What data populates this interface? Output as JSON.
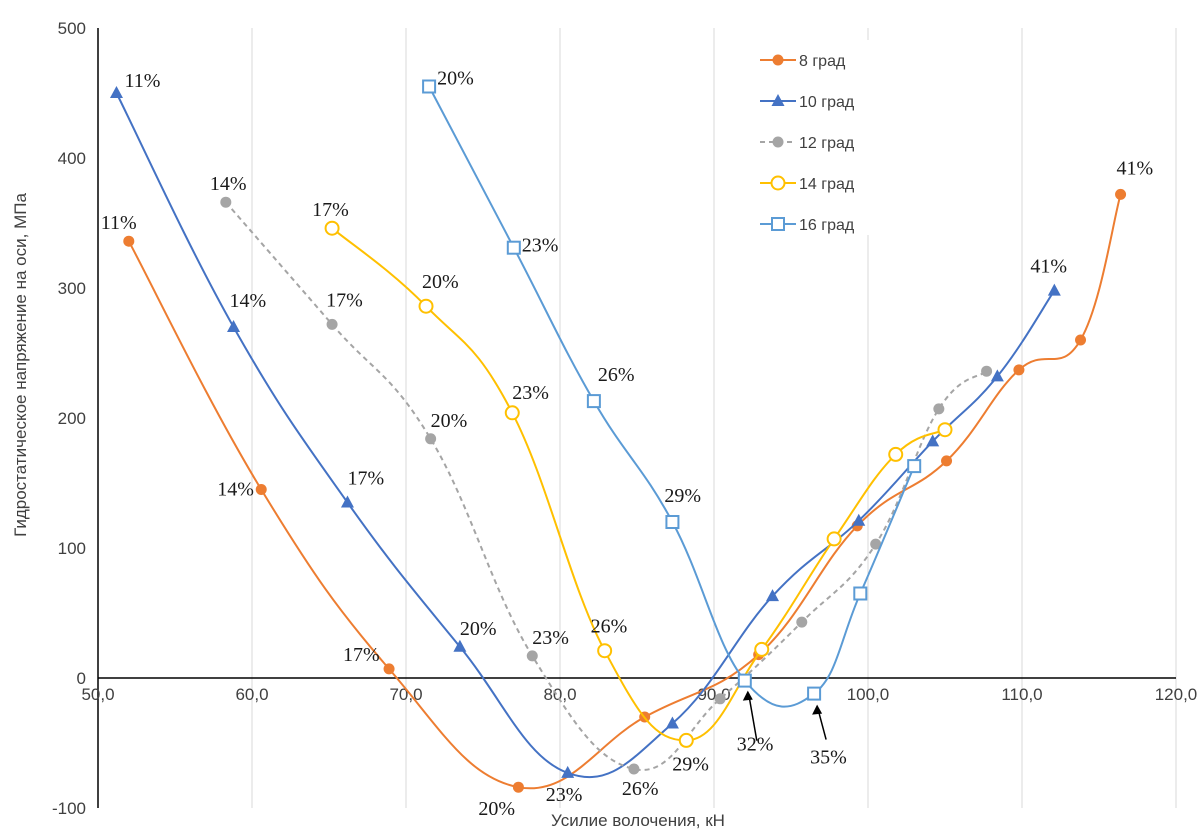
{
  "chart_data": {
    "type": "line",
    "title": "",
    "xlabel": "Усилие волочения, кН",
    "ylabel": "Гидростатическое напряжение на оси, МПа",
    "xlim": [
      50,
      120
    ],
    "ylim": [
      -100,
      500
    ],
    "x_ticks": [
      "50,0",
      "60,0",
      "70,0",
      "80,0",
      "90,0",
      "100,0",
      "110,0",
      "120,0"
    ],
    "y_ticks": [
      "-100",
      "0",
      "100",
      "200",
      "300",
      "400",
      "500"
    ],
    "grid": "vertical",
    "legend_position": "top-right",
    "series": [
      {
        "name": "8 град",
        "color": "#ED7D31",
        "marker": "filled-circle",
        "dash": "solid",
        "points": [
          {
            "x": 52.0,
            "y": 336,
            "label": "11%"
          },
          {
            "x": 60.6,
            "y": 145,
            "label": "14%"
          },
          {
            "x": 68.9,
            "y": 7,
            "label": "17%"
          },
          {
            "x": 77.3,
            "y": -84,
            "label": "20%"
          },
          {
            "x": 85.5,
            "y": -30,
            "label": ""
          },
          {
            "x": 92.9,
            "y": 18,
            "label": ""
          },
          {
            "x": 99.3,
            "y": 117,
            "label": ""
          },
          {
            "x": 105.1,
            "y": 167,
            "label": ""
          },
          {
            "x": 109.8,
            "y": 237,
            "label": ""
          },
          {
            "x": 113.8,
            "y": 260,
            "label": ""
          },
          {
            "x": 116.4,
            "y": 372,
            "label": "41%"
          }
        ]
      },
      {
        "name": "10 град",
        "color": "#4472C4",
        "marker": "filled-triangle",
        "dash": "solid",
        "points": [
          {
            "x": 51.2,
            "y": 450,
            "label": "11%"
          },
          {
            "x": 58.8,
            "y": 270,
            "label": "14%"
          },
          {
            "x": 66.2,
            "y": 135,
            "label": "17%"
          },
          {
            "x": 73.5,
            "y": 24,
            "label": "20%"
          },
          {
            "x": 80.5,
            "y": -73,
            "label": "23%"
          },
          {
            "x": 87.3,
            "y": -35,
            "label": ""
          },
          {
            "x": 93.8,
            "y": 63,
            "label": ""
          },
          {
            "x": 99.4,
            "y": 121,
            "label": ""
          },
          {
            "x": 104.2,
            "y": 182,
            "label": ""
          },
          {
            "x": 108.4,
            "y": 232,
            "label": ""
          },
          {
            "x": 112.1,
            "y": 298,
            "label": "41%"
          }
        ]
      },
      {
        "name": "12 град",
        "color": "#A5A5A5",
        "marker": "filled-circle",
        "dash": "dashed",
        "points": [
          {
            "x": 58.3,
            "y": 366,
            "label": "14%"
          },
          {
            "x": 65.2,
            "y": 272,
            "label": "17%"
          },
          {
            "x": 71.6,
            "y": 184,
            "label": "20%"
          },
          {
            "x": 78.2,
            "y": 17,
            "label": "23%"
          },
          {
            "x": 84.8,
            "y": -70,
            "label": "26%"
          },
          {
            "x": 90.4,
            "y": -16,
            "label": ""
          },
          {
            "x": 95.7,
            "y": 43,
            "label": ""
          },
          {
            "x": 100.5,
            "y": 103,
            "label": ""
          },
          {
            "x": 104.6,
            "y": 207,
            "label": ""
          },
          {
            "x": 107.7,
            "y": 236,
            "label": ""
          }
        ]
      },
      {
        "name": "14 град",
        "color": "#FFC000",
        "marker": "open-circle",
        "dash": "solid",
        "points": [
          {
            "x": 65.2,
            "y": 346,
            "label": "17%"
          },
          {
            "x": 71.3,
            "y": 286,
            "label": "20%"
          },
          {
            "x": 76.9,
            "y": 204,
            "label": "23%"
          },
          {
            "x": 82.9,
            "y": 21,
            "label": "26%"
          },
          {
            "x": 88.2,
            "y": -48,
            "label": "29%"
          },
          {
            "x": 93.1,
            "y": 22,
            "label": ""
          },
          {
            "x": 97.8,
            "y": 107,
            "label": ""
          },
          {
            "x": 101.8,
            "y": 172,
            "label": ""
          },
          {
            "x": 105.0,
            "y": 191,
            "label": ""
          }
        ]
      },
      {
        "name": "16 град",
        "color": "#5B9BD5",
        "marker": "open-square",
        "dash": "solid",
        "points": [
          {
            "x": 71.5,
            "y": 455,
            "label": "20%"
          },
          {
            "x": 77.0,
            "y": 331,
            "label": "23%"
          },
          {
            "x": 82.2,
            "y": 213,
            "label": "26%"
          },
          {
            "x": 87.3,
            "y": 120,
            "label": "29%"
          },
          {
            "x": 92.0,
            "y": -2,
            "label": "32%"
          },
          {
            "x": 96.5,
            "y": -12,
            "label": "35%"
          },
          {
            "x": 99.5,
            "y": 65,
            "label": ""
          },
          {
            "x": 103.0,
            "y": 163,
            "label": ""
          }
        ]
      }
    ]
  }
}
